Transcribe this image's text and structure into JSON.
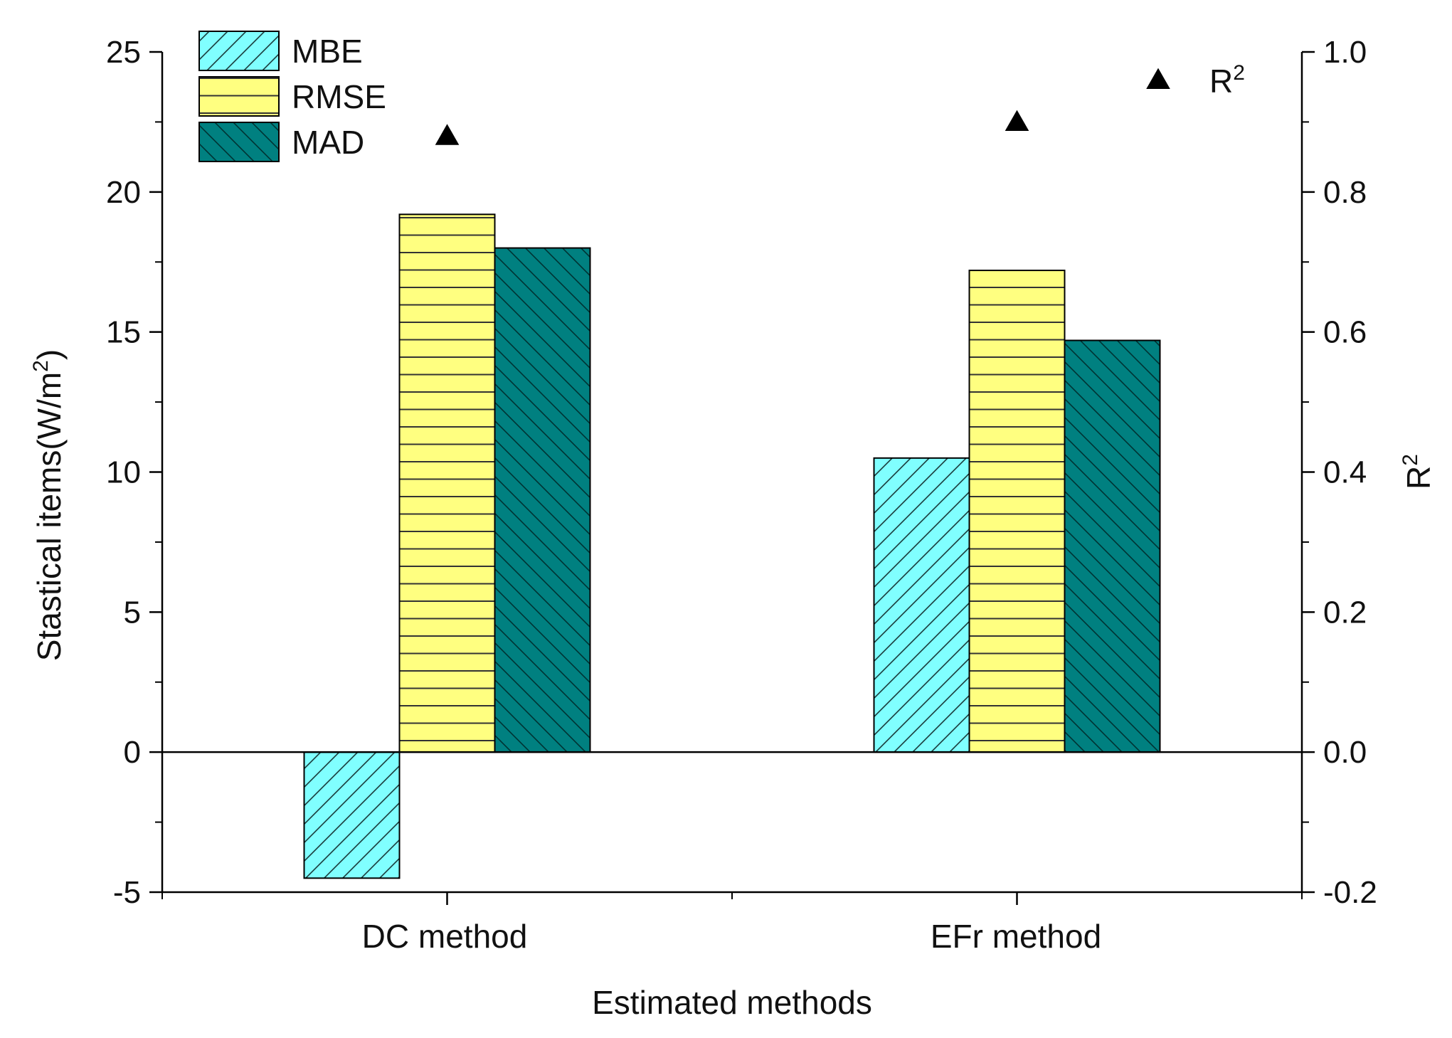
{
  "chart_data": {
    "type": "bar",
    "title": "",
    "xlabel": "Estimated methods",
    "ylabel": "Stastical items(W/m",
    "ylabel_sup": "2",
    "ylabel_close": ")",
    "y2label": "R",
    "y2label_sup": "2",
    "categories": [
      "DC method",
      "EFr method"
    ],
    "series": [
      {
        "name": "MBE",
        "values": [
          -4.5,
          10.5
        ],
        "color": "#80FFFF",
        "pattern": "diagonal-up"
      },
      {
        "name": "RMSE",
        "values": [
          19.2,
          17.2
        ],
        "color": "#FFFF80",
        "pattern": "horizontal"
      },
      {
        "name": "MAD",
        "values": [
          18.0,
          14.7
        ],
        "color": "#008080",
        "pattern": "diagonal-down"
      }
    ],
    "r2_series": {
      "name": "R",
      "name_sup": "2",
      "values": [
        0.88,
        0.9
      ],
      "legend_value": 0.96,
      "marker": "triangle",
      "color": "#000000"
    },
    "ylim": [
      -5,
      25
    ],
    "yticks": [
      -5,
      0,
      5,
      10,
      15,
      20,
      25
    ],
    "ytick_labels": [
      "-5",
      "0",
      "5",
      "10",
      "15",
      "20",
      "25"
    ],
    "y2lim": [
      -0.2,
      1.0
    ],
    "y2ticks": [
      -0.2,
      0.0,
      0.2,
      0.4,
      0.6,
      0.8,
      1.0
    ],
    "y2tick_labels": [
      "-0.2",
      "0.0",
      "0.2",
      "0.4",
      "0.6",
      "0.8",
      "1.0"
    ],
    "grid": false,
    "legend_position": "top-left",
    "zero_line": true
  }
}
